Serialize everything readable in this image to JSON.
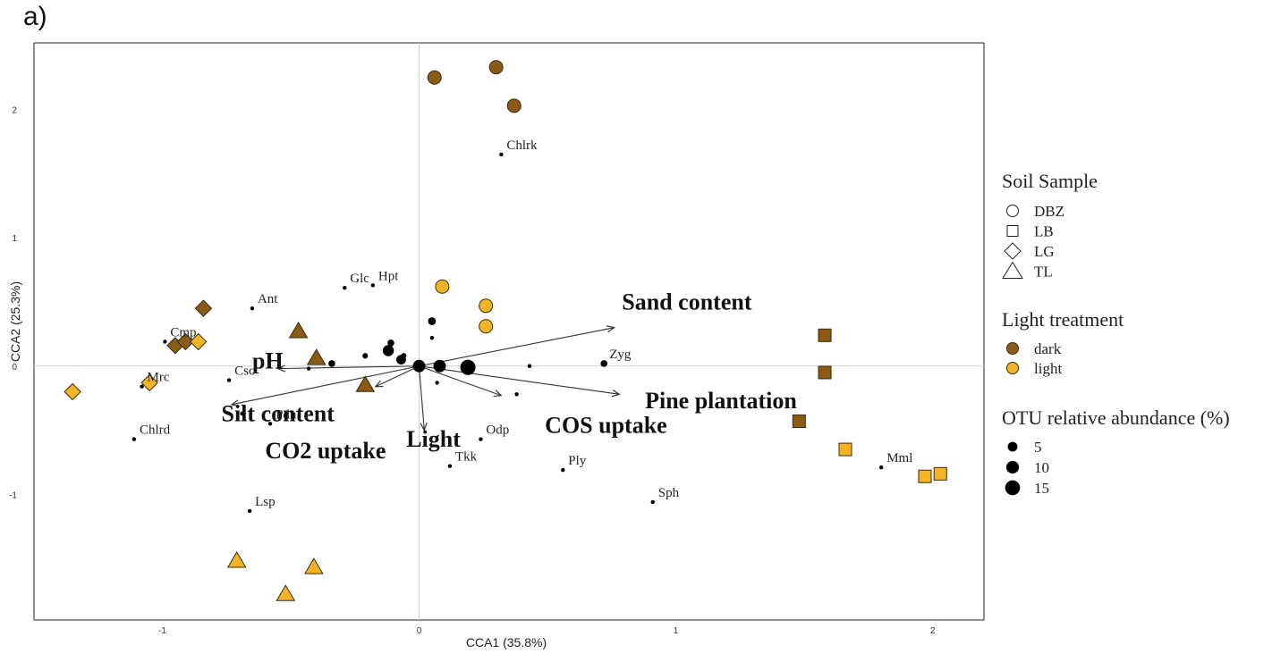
{
  "panel_label": "a)",
  "chart_data": {
    "type": "scatter",
    "subtype": "CCA biplot",
    "xlabel": "CCA1 (35.8%)",
    "ylabel": "CCA2 (25.3%)",
    "xlim": [
      -1.5,
      2.2
    ],
    "ylim": [
      -1.98,
      2.52
    ],
    "xticks": [
      {
        "v": -1,
        "label": "-1"
      },
      {
        "v": 0,
        "label": "0"
      },
      {
        "v": 1,
        "label": "1"
      },
      {
        "v": 2,
        "label": "2"
      }
    ],
    "yticks": [
      {
        "v": -1,
        "label": "-1"
      },
      {
        "v": 0,
        "label": "0"
      },
      {
        "v": 1,
        "label": "1"
      },
      {
        "v": 2,
        "label": "2"
      }
    ],
    "zero_lines": true,
    "colors": {
      "dark": "#8b5a16",
      "light": "#f4b425"
    },
    "samples": [
      {
        "x": 0.06,
        "y": 2.25,
        "site": "DBZ",
        "treatment": "dark"
      },
      {
        "x": 0.3,
        "y": 2.33,
        "site": "DBZ",
        "treatment": "dark"
      },
      {
        "x": 0.37,
        "y": 2.03,
        "site": "DBZ",
        "treatment": "dark"
      },
      {
        "x": 0.09,
        "y": 0.62,
        "site": "DBZ",
        "treatment": "light"
      },
      {
        "x": 0.26,
        "y": 0.47,
        "site": "DBZ",
        "treatment": "light"
      },
      {
        "x": 0.26,
        "y": 0.31,
        "site": "DBZ",
        "treatment": "light"
      },
      {
        "x": 1.58,
        "y": 0.24,
        "site": "LB",
        "treatment": "dark"
      },
      {
        "x": 1.58,
        "y": -0.05,
        "site": "LB",
        "treatment": "dark"
      },
      {
        "x": 1.48,
        "y": -0.43,
        "site": "LB",
        "treatment": "dark"
      },
      {
        "x": 1.66,
        "y": -0.65,
        "site": "LB",
        "treatment": "light"
      },
      {
        "x": 1.97,
        "y": -0.86,
        "site": "LB",
        "treatment": "light"
      },
      {
        "x": 2.03,
        "y": -0.84,
        "site": "LB",
        "treatment": "light"
      },
      {
        "x": -0.84,
        "y": 0.45,
        "site": "LG",
        "treatment": "dark"
      },
      {
        "x": -0.95,
        "y": 0.16,
        "site": "LG",
        "treatment": "dark"
      },
      {
        "x": -0.91,
        "y": 0.19,
        "site": "LG",
        "treatment": "dark"
      },
      {
        "x": -0.86,
        "y": 0.19,
        "site": "LG",
        "treatment": "light"
      },
      {
        "x": -1.05,
        "y": -0.13,
        "site": "LG",
        "treatment": "light"
      },
      {
        "x": -1.35,
        "y": -0.2,
        "site": "LG",
        "treatment": "light"
      },
      {
        "x": -0.47,
        "y": 0.27,
        "site": "TL",
        "treatment": "dark"
      },
      {
        "x": -0.4,
        "y": 0.06,
        "site": "TL",
        "treatment": "dark"
      },
      {
        "x": -0.21,
        "y": -0.15,
        "site": "TL",
        "treatment": "dark"
      },
      {
        "x": -0.71,
        "y": -1.52,
        "site": "TL",
        "treatment": "light"
      },
      {
        "x": -0.41,
        "y": -1.57,
        "site": "TL",
        "treatment": "light"
      },
      {
        "x": -0.52,
        "y": -1.78,
        "site": "TL",
        "treatment": "light"
      }
    ],
    "otus": [
      {
        "x": 0.32,
        "y": 1.65,
        "abundance": 1,
        "label": "Chlrk"
      },
      {
        "x": -0.18,
        "y": 0.63,
        "abundance": 1,
        "label": "Hpt"
      },
      {
        "x": -0.29,
        "y": 0.61,
        "abundance": 1,
        "label": "Glc"
      },
      {
        "x": -0.65,
        "y": 0.45,
        "abundance": 1,
        "label": "Ant"
      },
      {
        "x": -0.99,
        "y": 0.19,
        "abundance": 1,
        "label": "Cmp"
      },
      {
        "x": -0.74,
        "y": -0.11,
        "abundance": 1,
        "label": "Csc"
      },
      {
        "x": -1.08,
        "y": -0.16,
        "abundance": 1,
        "label": "Mrc"
      },
      {
        "x": -1.11,
        "y": -0.57,
        "abundance": 1,
        "label": "Chlrd"
      },
      {
        "x": -0.58,
        "y": -0.45,
        "abundance": 1,
        "label": "Pdn"
      },
      {
        "x": -0.66,
        "y": -1.13,
        "abundance": 1,
        "label": "Lsp"
      },
      {
        "x": 0.72,
        "y": 0.02,
        "abundance": 3,
        "label": "Zyg"
      },
      {
        "x": 0.24,
        "y": -0.57,
        "abundance": 1,
        "label": "Odp"
      },
      {
        "x": 0.12,
        "y": -0.78,
        "abundance": 1,
        "label": "Tkk"
      },
      {
        "x": 0.56,
        "y": -0.81,
        "abundance": 1,
        "label": "Ply"
      },
      {
        "x": 0.91,
        "y": -1.06,
        "abundance": 1,
        "label": "Sph"
      },
      {
        "x": 1.8,
        "y": -0.79,
        "abundance": 1,
        "label": "Mml"
      },
      {
        "x": 0.05,
        "y": 0.35,
        "abundance": 4
      },
      {
        "x": 0.05,
        "y": 0.22,
        "abundance": 1
      },
      {
        "x": 0.0,
        "y": 0.0,
        "abundance": 10
      },
      {
        "x": 0.08,
        "y": 0.0,
        "abundance": 10
      },
      {
        "x": 0.19,
        "y": -0.01,
        "abundance": 15
      },
      {
        "x": 0.07,
        "y": -0.13,
        "abundance": 1
      },
      {
        "x": -0.12,
        "y": 0.12,
        "abundance": 8
      },
      {
        "x": -0.11,
        "y": 0.18,
        "abundance": 3
      },
      {
        "x": -0.07,
        "y": 0.05,
        "abundance": 6
      },
      {
        "x": -0.06,
        "y": 0.08,
        "abundance": 2
      },
      {
        "x": -0.21,
        "y": 0.08,
        "abundance": 2
      },
      {
        "x": -0.34,
        "y": 0.02,
        "abundance": 3
      },
      {
        "x": -0.43,
        "y": -0.02,
        "abundance": 1
      },
      {
        "x": -0.69,
        "y": -0.37,
        "abundance": 1
      },
      {
        "x": 0.43,
        "y": 0.0,
        "abundance": 1
      },
      {
        "x": 0.38,
        "y": -0.22,
        "abundance": 1
      }
    ],
    "env_vectors": [
      {
        "name": "Sand content",
        "x": 0.76,
        "y": 0.3,
        "lx": 0.79,
        "ly": 0.44
      },
      {
        "name": "pH",
        "x": -0.55,
        "y": -0.02,
        "lx": -0.65,
        "ly": -0.02
      },
      {
        "name": "Silt content",
        "x": -0.73,
        "y": -0.3,
        "lx": -0.77,
        "ly": -0.43
      },
      {
        "name": "CO2 uptake",
        "x": -0.17,
        "y": -0.16,
        "lx": -0.6,
        "ly": -0.72
      },
      {
        "name": "Light",
        "x": 0.02,
        "y": -0.5,
        "lx": -0.05,
        "ly": -0.63
      },
      {
        "name": "COS uptake",
        "x": 0.32,
        "y": -0.23,
        "lx": 0.49,
        "ly": -0.52
      },
      {
        "name": "Pine plantation",
        "x": 0.78,
        "y": -0.22,
        "lx": 0.88,
        "ly": -0.33
      }
    ],
    "legend": {
      "placement": "right",
      "soil_title": "Soil Sample",
      "sites": [
        "DBZ",
        "LB",
        "LG",
        "TL"
      ],
      "light_title": "Light treatment",
      "treatments": [
        "dark",
        "light"
      ],
      "otu_title": "OTU relative abundance (%)",
      "otu_sizes": [
        {
          "value": 5,
          "label": "5"
        },
        {
          "value": 10,
          "label": "10"
        },
        {
          "value": 15,
          "label": "15"
        }
      ]
    }
  }
}
